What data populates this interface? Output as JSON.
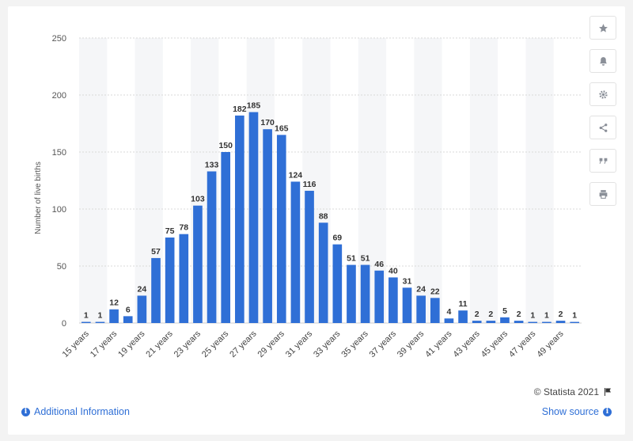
{
  "chart_data": {
    "type": "bar",
    "ylabel": "Number of live births",
    "xlabel": "",
    "ylim": [
      0,
      250
    ],
    "yticks": [
      0,
      50,
      100,
      150,
      200,
      250
    ],
    "grid": true,
    "categories": [
      "15 years",
      "16 years",
      "17 years",
      "18 years",
      "19 years",
      "20 years",
      "21 years",
      "22 years",
      "23 years",
      "24 years",
      "25 years",
      "26 years",
      "27 years",
      "28 years",
      "29 years",
      "30 years",
      "31 years",
      "32 years",
      "33 years",
      "34 years",
      "35 years",
      "36 years",
      "37 years",
      "38 years",
      "39 years",
      "40 years",
      "41 years",
      "42 years",
      "43 years",
      "44 years",
      "45 years",
      "46 years",
      "47 years",
      "48 years",
      "49 years",
      "50 years"
    ],
    "values": [
      1,
      1,
      12,
      6,
      24,
      57,
      75,
      78,
      103,
      133,
      150,
      182,
      185,
      170,
      165,
      124,
      116,
      88,
      69,
      51,
      51,
      46,
      40,
      31,
      24,
      22,
      4,
      11,
      2,
      2,
      5,
      2,
      1,
      1,
      2,
      1
    ],
    "tick_labels": [
      "15 years",
      "17 years",
      "19 years",
      "21 years",
      "23 years",
      "25 years",
      "27 years",
      "29 years",
      "31 years",
      "33 years",
      "35 years",
      "37 years",
      "39 years",
      "41 years",
      "43 years",
      "45 years",
      "47 years",
      "49 years"
    ],
    "bar_color": "#2f6fd6"
  },
  "footer": {
    "credit": "© Statista 2021",
    "additional_info": "Additional Information",
    "show_source": "Show source"
  },
  "toolbar": {
    "icons": [
      "star-icon",
      "bell-icon",
      "gear-icon",
      "share-icon",
      "quote-icon",
      "print-icon"
    ]
  }
}
